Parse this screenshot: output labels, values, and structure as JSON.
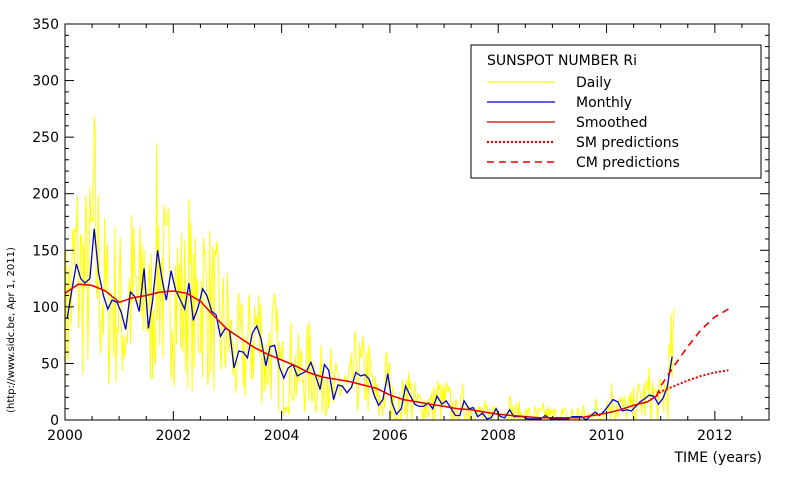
{
  "chart_data": {
    "type": "line",
    "title": "",
    "xlabel": "TIME (years)",
    "ylabel": "",
    "credit": "(http://www.sidc.be, Apr  1, 2011)",
    "xlim": [
      2000,
      2013
    ],
    "ylim": [
      0,
      350
    ],
    "xticks": [
      2000,
      2002,
      2004,
      2006,
      2008,
      2010,
      2012
    ],
    "yticks": [
      0,
      50,
      100,
      150,
      200,
      250,
      300,
      350
    ],
    "grid": false,
    "legend": {
      "title": "SUNSPOT NUMBER Ri",
      "position": "top-right",
      "entries": [
        "Daily",
        "Monthly",
        "Smoothed",
        "SM predictions",
        "CM predictions"
      ]
    },
    "series": [
      {
        "name": "Monthly",
        "color": "#0000cc",
        "x": [
          2000.04,
          2000.12,
          2000.21,
          2000.29,
          2000.37,
          2000.46,
          2000.54,
          2000.62,
          2000.71,
          2000.79,
          2000.87,
          2000.96,
          2001.04,
          2001.12,
          2001.21,
          2001.29,
          2001.37,
          2001.46,
          2001.54,
          2001.62,
          2001.71,
          2001.79,
          2001.87,
          2001.96,
          2002.04,
          2002.12,
          2002.21,
          2002.29,
          2002.37,
          2002.46,
          2002.54,
          2002.62,
          2002.71,
          2002.79,
          2002.87,
          2002.96,
          2003.04,
          2003.12,
          2003.21,
          2003.29,
          2003.37,
          2003.46,
          2003.54,
          2003.62,
          2003.71,
          2003.79,
          2003.87,
          2003.96,
          2004.04,
          2004.12,
          2004.21,
          2004.29,
          2004.37,
          2004.46,
          2004.54,
          2004.62,
          2004.71,
          2004.79,
          2004.87,
          2004.96,
          2005.04,
          2005.12,
          2005.21,
          2005.29,
          2005.37,
          2005.46,
          2005.54,
          2005.62,
          2005.71,
          2005.79,
          2005.87,
          2005.96,
          2006.04,
          2006.12,
          2006.21,
          2006.29,
          2006.37,
          2006.46,
          2006.54,
          2006.62,
          2006.71,
          2006.79,
          2006.87,
          2006.96,
          2007.04,
          2007.12,
          2007.21,
          2007.29,
          2007.37,
          2007.46,
          2007.54,
          2007.62,
          2007.71,
          2007.79,
          2007.87,
          2007.96,
          2008.04,
          2008.12,
          2008.21,
          2008.29,
          2008.37,
          2008.46,
          2008.54,
          2008.62,
          2008.71,
          2008.79,
          2008.87,
          2008.96,
          2009.04,
          2009.12,
          2009.21,
          2009.29,
          2009.37,
          2009.46,
          2009.54,
          2009.62,
          2009.71,
          2009.79,
          2009.87,
          2009.96,
          2010.04,
          2010.12,
          2010.21,
          2010.29,
          2010.37,
          2010.46,
          2010.54,
          2010.62,
          2010.71,
          2010.79,
          2010.87,
          2010.96,
          2011.04,
          2011.12,
          2011.21
        ],
        "values": [
          90,
          113,
          138,
          125,
          121,
          125,
          169,
          130,
          110,
          98,
          106,
          104,
          95,
          80,
          113,
          109,
          96,
          134,
          81,
          106,
          150,
          125,
          106,
          132,
          115,
          107,
          98,
          121,
          88,
          100,
          116,
          110,
          96,
          93,
          74,
          81,
          79,
          46,
          61,
          60,
          55,
          77,
          83,
          72,
          48,
          65,
          66,
          47,
          37,
          46,
          49,
          39,
          41,
          43,
          51,
          40,
          27,
          49,
          44,
          18,
          31,
          30,
          24,
          29,
          42,
          39,
          40,
          36,
          22,
          13,
          18,
          41,
          15,
          5,
          10,
          30,
          22,
          14,
          12,
          12,
          15,
          10,
          21,
          14,
          17,
          11,
          4,
          4,
          17,
          10,
          11,
          3,
          6,
          1,
          2,
          10,
          3,
          2,
          9,
          3,
          3,
          3,
          1,
          1,
          1,
          1,
          4,
          1,
          1,
          1,
          1,
          1,
          3,
          3,
          3,
          0,
          4,
          7,
          4,
          8,
          13,
          18,
          16,
          8,
          9,
          8,
          12,
          16,
          19,
          22,
          21,
          14,
          19,
          29,
          56
        ]
      },
      {
        "name": "Smoothed",
        "color": "#dd0000",
        "x": [
          2000.0,
          2000.25,
          2000.5,
          2000.75,
          2001.0,
          2001.25,
          2001.5,
          2001.75,
          2002.0,
          2002.25,
          2002.5,
          2002.75,
          2003.0,
          2003.25,
          2003.5,
          2003.75,
          2004.0,
          2004.25,
          2004.5,
          2004.75,
          2005.0,
          2005.25,
          2005.5,
          2005.75,
          2006.0,
          2006.25,
          2006.5,
          2006.75,
          2007.0,
          2007.25,
          2007.5,
          2007.75,
          2008.0,
          2008.25,
          2008.5,
          2008.75,
          2009.0,
          2009.25,
          2009.5,
          2009.75,
          2010.0,
          2010.25,
          2010.5,
          2010.75,
          2010.92
        ],
        "values": [
          112,
          120,
          119,
          114,
          104,
          108,
          110,
          113,
          114,
          112,
          105,
          92,
          80,
          72,
          64,
          58,
          53,
          48,
          42,
          38,
          36,
          34,
          31,
          28,
          22,
          18,
          16,
          14,
          12,
          10,
          9,
          7,
          5,
          4,
          3,
          2,
          2,
          2,
          2,
          4,
          6,
          9,
          13,
          16,
          21
        ]
      },
      {
        "name": "SM predictions",
        "color": "#ee0000",
        "x": [
          2010.92,
          2011.0,
          2011.25,
          2011.5,
          2011.75,
          2012.0,
          2012.25
        ],
        "values": [
          21,
          25,
          30,
          35,
          39,
          42,
          44
        ]
      },
      {
        "name": "CM predictions",
        "color": "#ee0000",
        "x": [
          2010.92,
          2011.0,
          2011.25,
          2011.5,
          2011.75,
          2012.0,
          2012.25
        ],
        "values": [
          21,
          30,
          48,
          65,
          80,
          91,
          98
        ]
      }
    ]
  }
}
